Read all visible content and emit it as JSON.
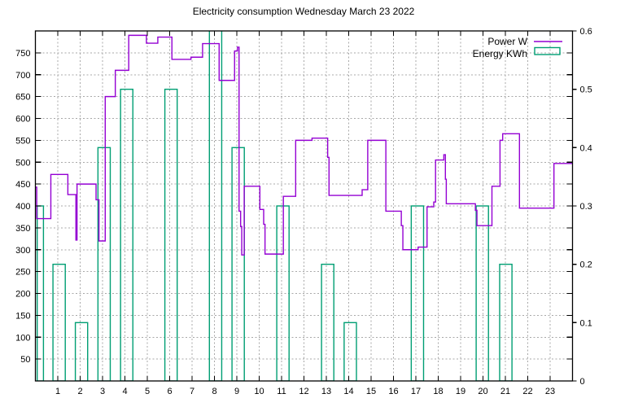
{
  "title": "Electricity consumption Wednesday March 23 2022",
  "chart_data": {
    "type": "mixed",
    "title": "Electricity consumption Wednesday March 23 2022",
    "grid": true,
    "legend_position": "top-right",
    "x_axis": {
      "range": [
        0,
        24
      ],
      "tick_labels": [
        1,
        2,
        3,
        4,
        5,
        6,
        7,
        8,
        9,
        10,
        11,
        12,
        13,
        14,
        15,
        16,
        17,
        18,
        19,
        20,
        21,
        22,
        23
      ]
    },
    "y_left_axis": {
      "range": [
        0,
        800
      ],
      "tick_labels": [
        50,
        100,
        150,
        200,
        250,
        300,
        350,
        400,
        450,
        500,
        550,
        600,
        650,
        700,
        750
      ]
    },
    "y_right_axis": {
      "range": [
        0,
        0.6
      ],
      "tick_labels": [
        "0",
        "0.1",
        "0.2",
        "0.3",
        "0.4",
        "0.5",
        "0.6"
      ],
      "tick_values": [
        0,
        0.1,
        0.2,
        0.3,
        0.4,
        0.5,
        0.6
      ]
    },
    "series": [
      {
        "name": "Power W",
        "type": "step-line",
        "axis": "left",
        "unit": "W",
        "color": "#9400d3",
        "end_x": 24,
        "steps_post": [
          [
            0.0,
            443
          ],
          [
            0.06,
            371
          ],
          [
            0.69,
            472
          ],
          [
            1.45,
            426
          ],
          [
            1.81,
            322
          ],
          [
            1.86,
            450
          ],
          [
            2.71,
            414
          ],
          [
            2.84,
            320
          ],
          [
            3.12,
            650
          ],
          [
            3.57,
            710
          ],
          [
            4.17,
            790
          ],
          [
            4.96,
            772
          ],
          [
            5.47,
            786
          ],
          [
            6.1,
            735
          ],
          [
            6.95,
            740
          ],
          [
            7.47,
            771
          ],
          [
            8.21,
            687
          ],
          [
            8.9,
            754
          ],
          [
            9.03,
            763
          ],
          [
            9.1,
            388
          ],
          [
            9.17,
            353
          ],
          [
            9.22,
            288
          ],
          [
            9.33,
            445
          ],
          [
            10.03,
            392
          ],
          [
            10.2,
            358
          ],
          [
            10.26,
            290
          ],
          [
            11.08,
            422
          ],
          [
            11.63,
            550
          ],
          [
            12.36,
            555
          ],
          [
            13.06,
            511
          ],
          [
            13.12,
            424
          ],
          [
            14.6,
            437
          ],
          [
            14.85,
            550
          ],
          [
            15.66,
            388
          ],
          [
            16.35,
            355
          ],
          [
            16.42,
            300
          ],
          [
            17.1,
            306
          ],
          [
            17.5,
            398
          ],
          [
            17.8,
            409
          ],
          [
            17.88,
            505
          ],
          [
            18.25,
            517
          ],
          [
            18.32,
            461
          ],
          [
            18.36,
            405
          ],
          [
            19.66,
            390
          ],
          [
            19.73,
            355
          ],
          [
            20.4,
            445
          ],
          [
            20.76,
            550
          ],
          [
            20.88,
            565
          ],
          [
            21.63,
            395
          ],
          [
            23.17,
            497
          ]
        ]
      },
      {
        "name": "Energy KWh",
        "type": "boxes",
        "axis": "right",
        "unit": "KWh",
        "color": "#009e73",
        "default_box_width": 0.55,
        "bars": [
          {
            "hour": 0,
            "x": 0.22,
            "w": 0.28,
            "kwh": 0.3
          },
          {
            "hour": 1,
            "x": 1.06,
            "kwh": 0.2
          },
          {
            "hour": 2,
            "x": 2.06,
            "kwh": 0.1
          },
          {
            "hour": 3,
            "x": 3.07,
            "kwh": 0.4
          },
          {
            "hour": 4,
            "x": 4.08,
            "kwh": 0.5
          },
          {
            "hour": 6,
            "x": 6.06,
            "kwh": 0.5
          },
          {
            "hour": 8,
            "x": 8.05,
            "kwh": 0.65,
            "clipped_above": 0.6
          },
          {
            "hour": 9,
            "x": 9.06,
            "kwh": 0.4
          },
          {
            "hour": 11,
            "x": 11.06,
            "kwh": 0.3
          },
          {
            "hour": 13,
            "x": 13.06,
            "kwh": 0.2
          },
          {
            "hour": 14,
            "x": 14.07,
            "kwh": 0.1
          },
          {
            "hour": 17,
            "x": 17.07,
            "kwh": 0.3
          },
          {
            "hour": 20,
            "x": 19.97,
            "kwh": 0.3
          },
          {
            "hour": 21,
            "x": 21.02,
            "kwh": 0.2
          }
        ]
      }
    ],
    "colors": {
      "power_line": "#9400d3",
      "energy_box": "#009e73",
      "grid": "#a8a8a8",
      "border": "#000000",
      "background": "#ffffff"
    }
  }
}
